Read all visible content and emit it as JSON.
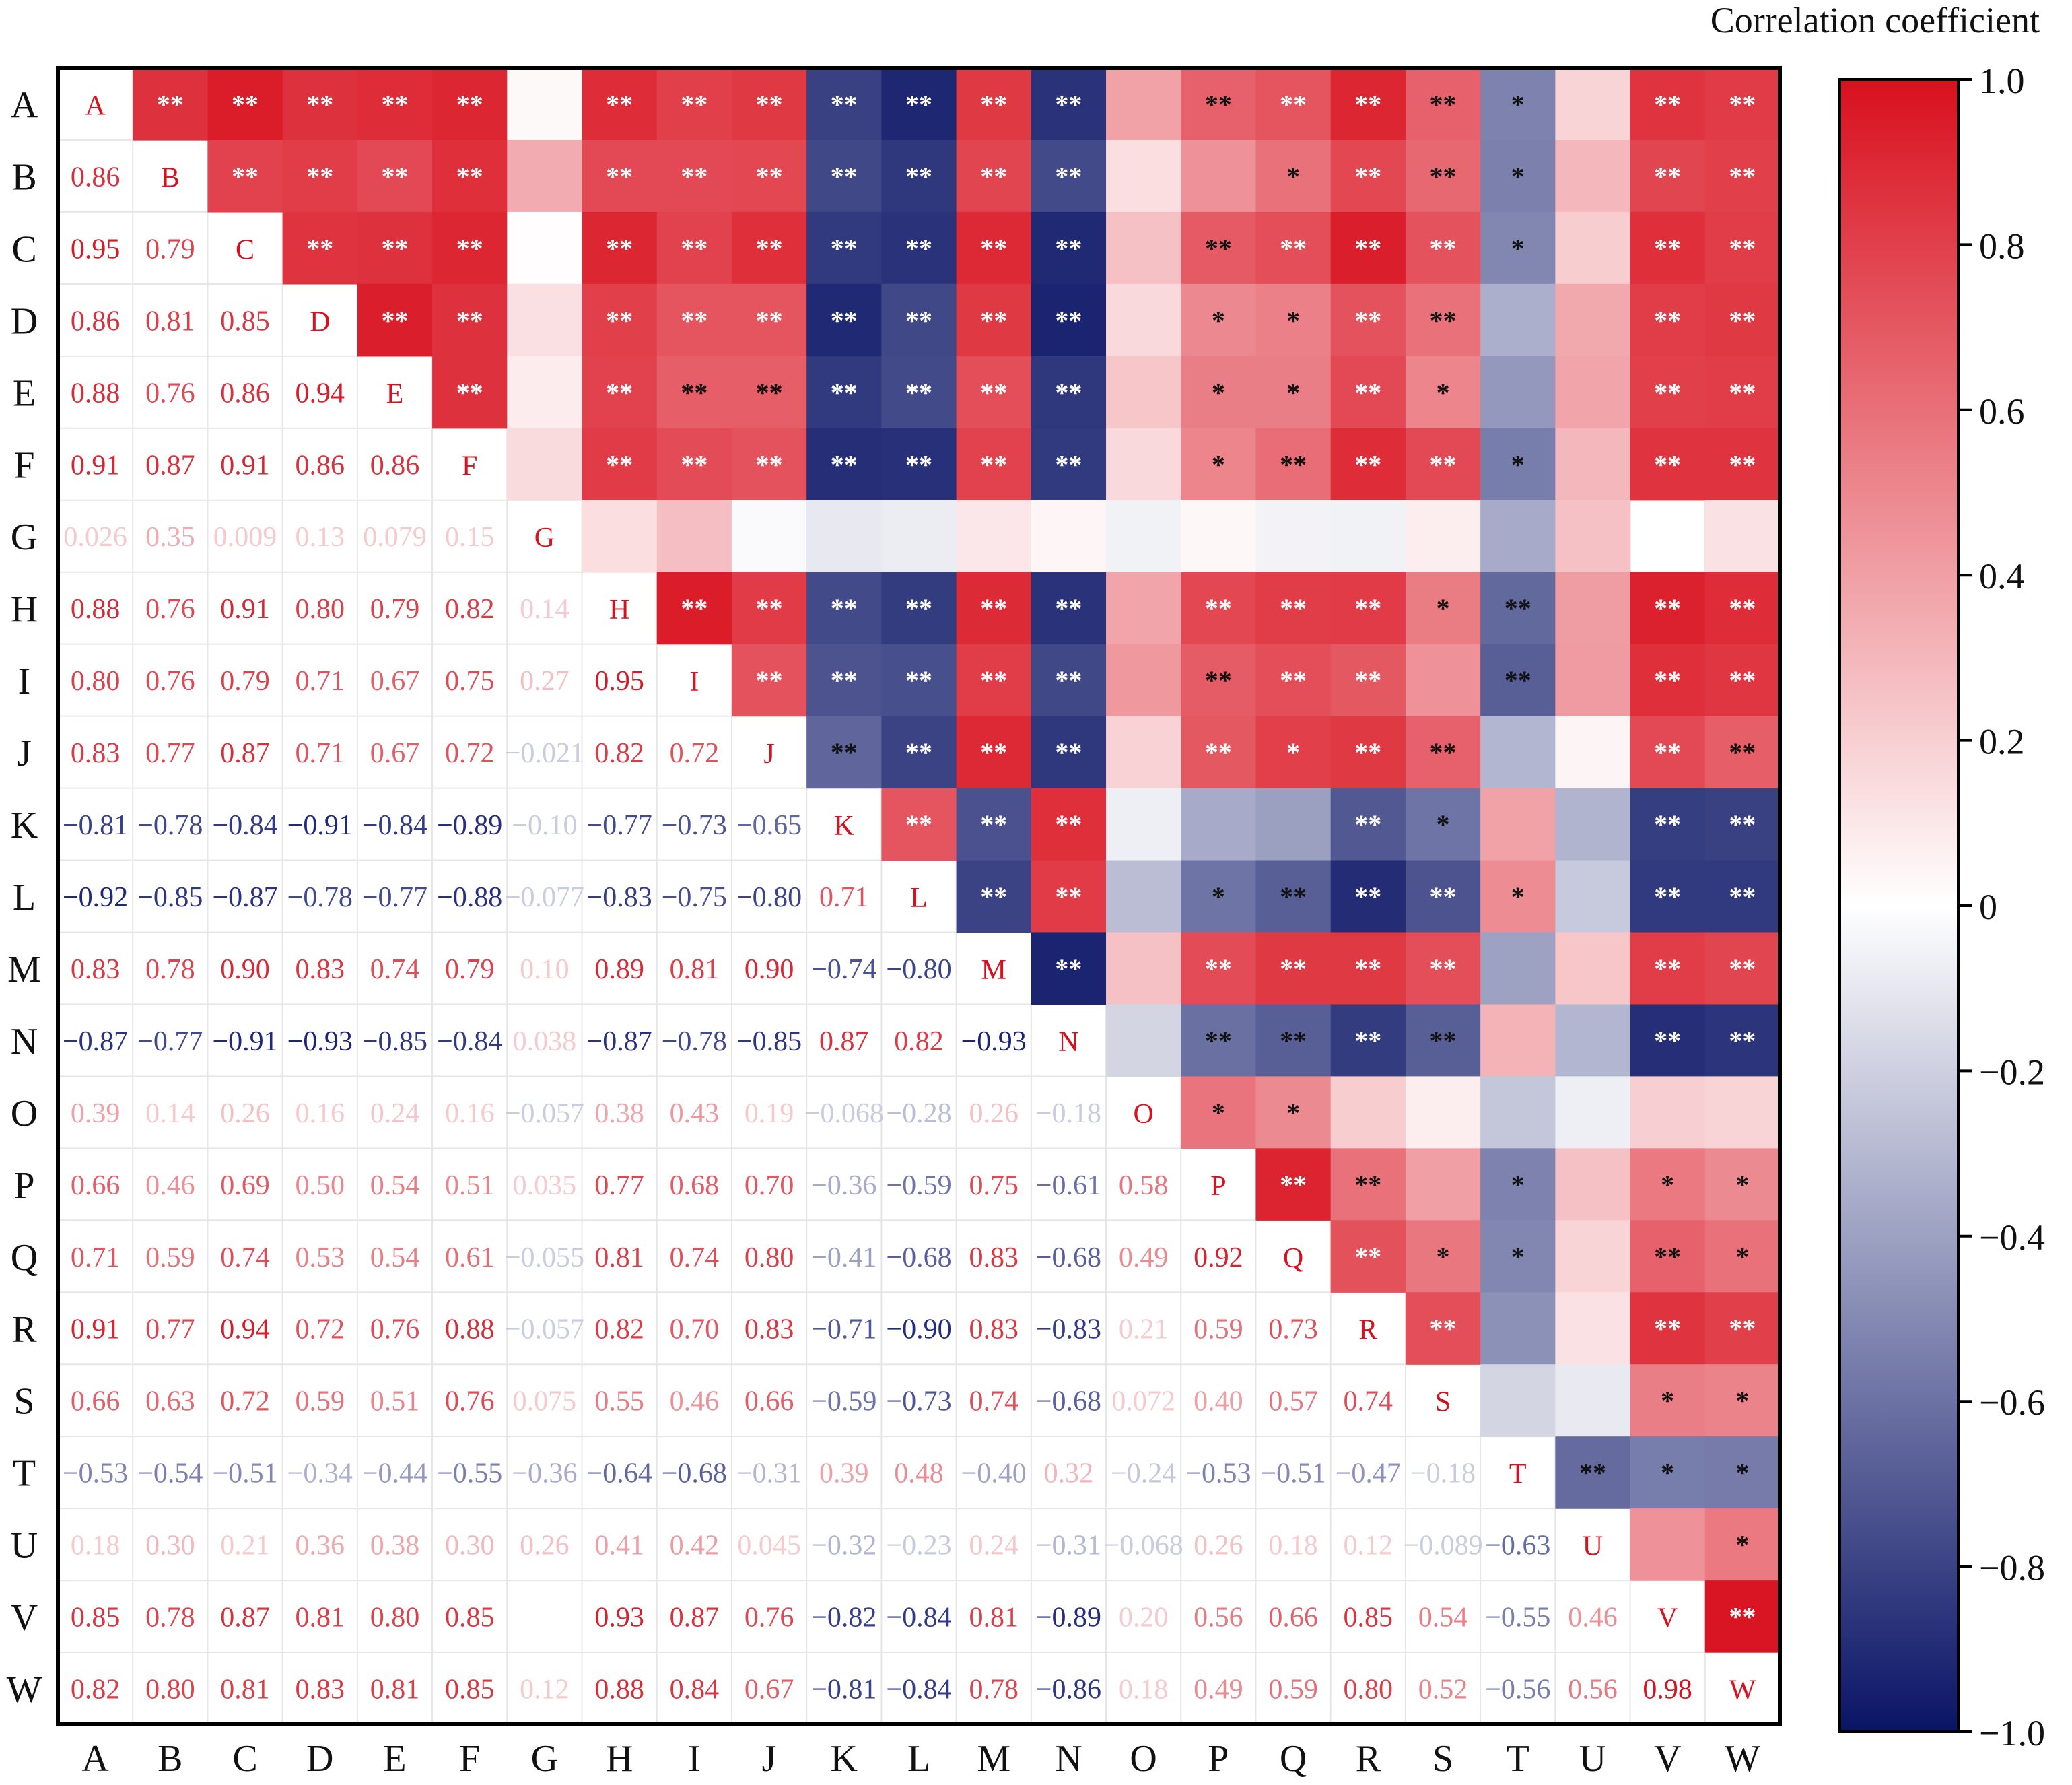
{
  "chart_data": {
    "type": "heatmap",
    "title": "",
    "colorbar_title": "Correlation coefficient",
    "labels": [
      "A",
      "B",
      "C",
      "D",
      "E",
      "F",
      "G",
      "H",
      "I",
      "J",
      "K",
      "L",
      "M",
      "N",
      "O",
      "P",
      "Q",
      "R",
      "S",
      "T",
      "U",
      "V",
      "W"
    ],
    "lower_labels": [
      [],
      [
        "0.86"
      ],
      [
        "0.95",
        "0.79"
      ],
      [
        "0.86",
        "0.81",
        "0.85"
      ],
      [
        "0.88",
        "0.76",
        "0.86",
        "0.94"
      ],
      [
        "0.91",
        "0.87",
        "0.91",
        "0.86",
        "0.86"
      ],
      [
        "0.026",
        "0.35",
        "0.009",
        "0.13",
        "0.079",
        "0.15"
      ],
      [
        "0.88",
        "0.76",
        "0.91",
        "0.80",
        "0.79",
        "0.82",
        "0.14"
      ],
      [
        "0.80",
        "0.76",
        "0.79",
        "0.71",
        "0.67",
        "0.75",
        "0.27",
        "0.95"
      ],
      [
        "0.83",
        "0.77",
        "0.87",
        "0.71",
        "0.67",
        "0.72",
        "−0.021",
        "0.82",
        "0.72"
      ],
      [
        "−0.81",
        "−0.78",
        "−0.84",
        "−0.91",
        "−0.84",
        "−0.89",
        "−0.10",
        "−0.77",
        "−0.73",
        "−0.65"
      ],
      [
        "−0.92",
        "−0.85",
        "−0.87",
        "−0.78",
        "−0.77",
        "−0.88",
        "−0.077",
        "−0.83",
        "−0.75",
        "−0.80",
        "0.71"
      ],
      [
        "0.83",
        "0.78",
        "0.90",
        "0.83",
        "0.74",
        "0.79",
        "0.10",
        "0.89",
        "0.81",
        "0.90",
        "−0.74",
        "−0.80"
      ],
      [
        "−0.87",
        "−0.77",
        "−0.91",
        "−0.93",
        "−0.85",
        "−0.84",
        "0.038",
        "−0.87",
        "−0.78",
        "−0.85",
        "0.87",
        "0.82",
        "−0.93"
      ],
      [
        "0.39",
        "0.14",
        "0.26",
        "0.16",
        "0.24",
        "0.16",
        "−0.057",
        "0.38",
        "0.43",
        "0.19",
        "−0.068",
        "−0.28",
        "0.26",
        "−0.18"
      ],
      [
        "0.66",
        "0.46",
        "0.69",
        "0.50",
        "0.54",
        "0.51",
        "0.035",
        "0.77",
        "0.68",
        "0.70",
        "−0.36",
        "−0.59",
        "0.75",
        "−0.61",
        "0.58"
      ],
      [
        "0.71",
        "0.59",
        "0.74",
        "0.53",
        "0.54",
        "0.61",
        "−0.055",
        "0.81",
        "0.74",
        "0.80",
        "−0.41",
        "−0.68",
        "0.83",
        "−0.68",
        "0.49",
        "0.92"
      ],
      [
        "0.91",
        "0.77",
        "0.94",
        "0.72",
        "0.76",
        "0.88",
        "−0.057",
        "0.82",
        "0.70",
        "0.83",
        "−0.71",
        "−0.90",
        "0.83",
        "−0.83",
        "0.21",
        "0.59",
        "0.73"
      ],
      [
        "0.66",
        "0.63",
        "0.72",
        "0.59",
        "0.51",
        "0.76",
        "0.075",
        "0.55",
        "0.46",
        "0.66",
        "−0.59",
        "−0.73",
        "0.74",
        "−0.68",
        "0.072",
        "0.40",
        "0.57",
        "0.74"
      ],
      [
        "−0.53",
        "−0.54",
        "−0.51",
        "−0.34",
        "−0.44",
        "−0.55",
        "−0.36",
        "−0.64",
        "−0.68",
        "−0.31",
        "0.39",
        "0.48",
        "−0.40",
        "0.32",
        "−0.24",
        "−0.53",
        "−0.51",
        "−0.47",
        "−0.18"
      ],
      [
        "0.18",
        "0.30",
        "0.21",
        "0.36",
        "0.38",
        "0.30",
        "0.26",
        "0.41",
        "0.42",
        "0.045",
        "−0.32",
        "−0.23",
        "0.24",
        "−0.31",
        "−0.068",
        "0.26",
        "0.18",
        "0.12",
        "−0.089",
        "−0.63"
      ],
      [
        "0.85",
        "0.78",
        "0.87",
        "0.81",
        "0.80",
        "0.85",
        "",
        "0.93",
        "0.87",
        "0.76",
        "−0.82",
        "−0.84",
        "0.81",
        "−0.89",
        "0.20",
        "0.56",
        "0.66",
        "0.85",
        "0.54",
        "−0.55",
        "0.46"
      ],
      [
        "0.82",
        "0.80",
        "0.81",
        "0.83",
        "0.81",
        "0.85",
        "0.12",
        "0.88",
        "0.84",
        "0.67",
        "−0.81",
        "−0.84",
        "0.78",
        "−0.86",
        "0.18",
        "0.49",
        "0.59",
        "0.80",
        "0.52",
        "−0.56",
        "0.56",
        "0.98"
      ]
    ],
    "upper_marks": [
      [
        "",
        "**",
        "**",
        "**",
        "**",
        "**",
        "",
        "**",
        "**",
        "**",
        "**",
        "**",
        "**",
        "**",
        "",
        "**",
        "**",
        "**",
        "**",
        "*",
        "",
        "**",
        "**"
      ],
      [
        "",
        "",
        "**",
        "**",
        "**",
        "**",
        "",
        "**",
        "**",
        "**",
        "**",
        "**",
        "**",
        "**",
        "",
        "",
        "*",
        "**",
        "**",
        "*",
        "",
        "**",
        "**"
      ],
      [
        "",
        "",
        "",
        "**",
        "**",
        "**",
        "",
        "**",
        "**",
        "**",
        "**",
        "**",
        "**",
        "**",
        "",
        "**",
        "**",
        "**",
        "**",
        "*",
        "",
        "**",
        "**"
      ],
      [
        "",
        "",
        "",
        "",
        "**",
        "**",
        "",
        "**",
        "**",
        "**",
        "**",
        "**",
        "**",
        "**",
        "",
        "*",
        "*",
        "**",
        "**",
        "",
        "",
        "**",
        "**"
      ],
      [
        "",
        "",
        "",
        "",
        "",
        "**",
        "",
        "**",
        "**",
        "**",
        "**",
        "**",
        "**",
        "**",
        "",
        "*",
        "*",
        "**",
        "*",
        "",
        "",
        "**",
        "**"
      ],
      [
        "",
        "",
        "",
        "",
        "",
        "",
        "",
        "**",
        "**",
        "**",
        "**",
        "**",
        "**",
        "**",
        "",
        "*",
        "**",
        "**",
        "**",
        "*",
        "",
        "**",
        "**"
      ],
      [
        "",
        "",
        "",
        "",
        "",
        "",
        "",
        "",
        "",
        "",
        "",
        "",
        "",
        "",
        "",
        "",
        "",
        "",
        "",
        "",
        "",
        "",
        ""
      ],
      [
        "",
        "",
        "",
        "",
        "",
        "",
        "",
        "",
        "**",
        "**",
        "**",
        "**",
        "**",
        "**",
        "",
        "**",
        "**",
        "**",
        "*",
        "**",
        "",
        "**",
        "**"
      ],
      [
        "",
        "",
        "",
        "",
        "",
        "",
        "",
        "",
        "",
        "**",
        "**",
        "**",
        "**",
        "**",
        "",
        "**",
        "**",
        "**",
        "",
        "**",
        "",
        "**",
        "**"
      ],
      [
        "",
        "",
        "",
        "",
        "",
        "",
        "",
        "",
        "",
        "",
        "**",
        "**",
        "**",
        "**",
        "",
        "**",
        "*",
        "**",
        "**",
        "",
        "",
        "**",
        "**"
      ],
      [
        "",
        "",
        "",
        "",
        "",
        "",
        "",
        "",
        "",
        "",
        "",
        "**",
        "**",
        "**",
        "",
        "",
        "",
        "**",
        "*",
        "",
        "",
        "**",
        "**"
      ],
      [
        "",
        "",
        "",
        "",
        "",
        "",
        "",
        "",
        "",
        "",
        "",
        "",
        "**",
        "**",
        "",
        "*",
        "**",
        "**",
        "**",
        "*",
        "",
        "**",
        "**"
      ],
      [
        "",
        "",
        "",
        "",
        "",
        "",
        "",
        "",
        "",
        "",
        "",
        "",
        "",
        "**",
        "",
        "**",
        "**",
        "**",
        "**",
        "",
        "",
        "**",
        "**"
      ],
      [
        "",
        "",
        "",
        "",
        "",
        "",
        "",
        "",
        "",
        "",
        "",
        "",
        "",
        "",
        "",
        "**",
        "**",
        "**",
        "**",
        "",
        "",
        "**",
        "**"
      ],
      [
        "",
        "",
        "",
        "",
        "",
        "",
        "",
        "",
        "",
        "",
        "",
        "",
        "",
        "",
        "",
        "*",
        "*",
        "",
        "",
        "",
        "",
        "",
        ""
      ],
      [
        "",
        "",
        "",
        "",
        "",
        "",
        "",
        "",
        "",
        "",
        "",
        "",
        "",
        "",
        "",
        "",
        "**",
        "**",
        "",
        "*",
        "",
        "*",
        "*"
      ],
      [
        "",
        "",
        "",
        "",
        "",
        "",
        "",
        "",
        "",
        "",
        "",
        "",
        "",
        "",
        "",
        "",
        "",
        "**",
        "*",
        "*",
        "",
        "**",
        "*"
      ],
      [
        "",
        "",
        "",
        "",
        "",
        "",
        "",
        "",
        "",
        "",
        "",
        "",
        "",
        "",
        "",
        "",
        "",
        "",
        "**",
        "",
        "",
        "**",
        "**"
      ],
      [
        "",
        "",
        "",
        "",
        "",
        "",
        "",
        "",
        "",
        "",
        "",
        "",
        "",
        "",
        "",
        "",
        "",
        "",
        "",
        "",
        "",
        "*",
        "*"
      ],
      [
        "",
        "",
        "",
        "",
        "",
        "",
        "",
        "",
        "",
        "",
        "",
        "",
        "",
        "",
        "",
        "",
        "",
        "",
        "",
        "",
        "**",
        "*",
        "*"
      ],
      [
        "",
        "",
        "",
        "",
        "",
        "",
        "",
        "",
        "",
        "",
        "",
        "",
        "",
        "",
        "",
        "",
        "",
        "",
        "",
        "",
        "",
        "",
        "*"
      ],
      [
        "",
        "",
        "",
        "",
        "",
        "",
        "",
        "",
        "",
        "",
        "",
        "",
        "",
        "",
        "",
        "",
        "",
        "",
        "",
        "",
        "",
        "",
        "**"
      ],
      [
        "",
        "",
        "",
        "",
        "",
        "",
        "",
        "",
        "",
        "",
        "",
        "",
        "",
        "",
        "",
        "",
        "",
        "",
        "",
        "",
        "",
        "",
        ""
      ]
    ],
    "colorbar_ticks": [
      "1.0",
      "0.8",
      "0.6",
      "0.4",
      "0.2",
      "0",
      "−0.2",
      "−0.4",
      "−0.6",
      "−0.8",
      "−1.0"
    ],
    "value_range": [
      -1.0,
      1.0
    ],
    "colormap": [
      "#0a1466",
      "#ffffff",
      "#d9101e"
    ],
    "upper_triangle": "color + significance stars",
    "lower_triangle": "coefficient values",
    "legend_position": "right"
  }
}
